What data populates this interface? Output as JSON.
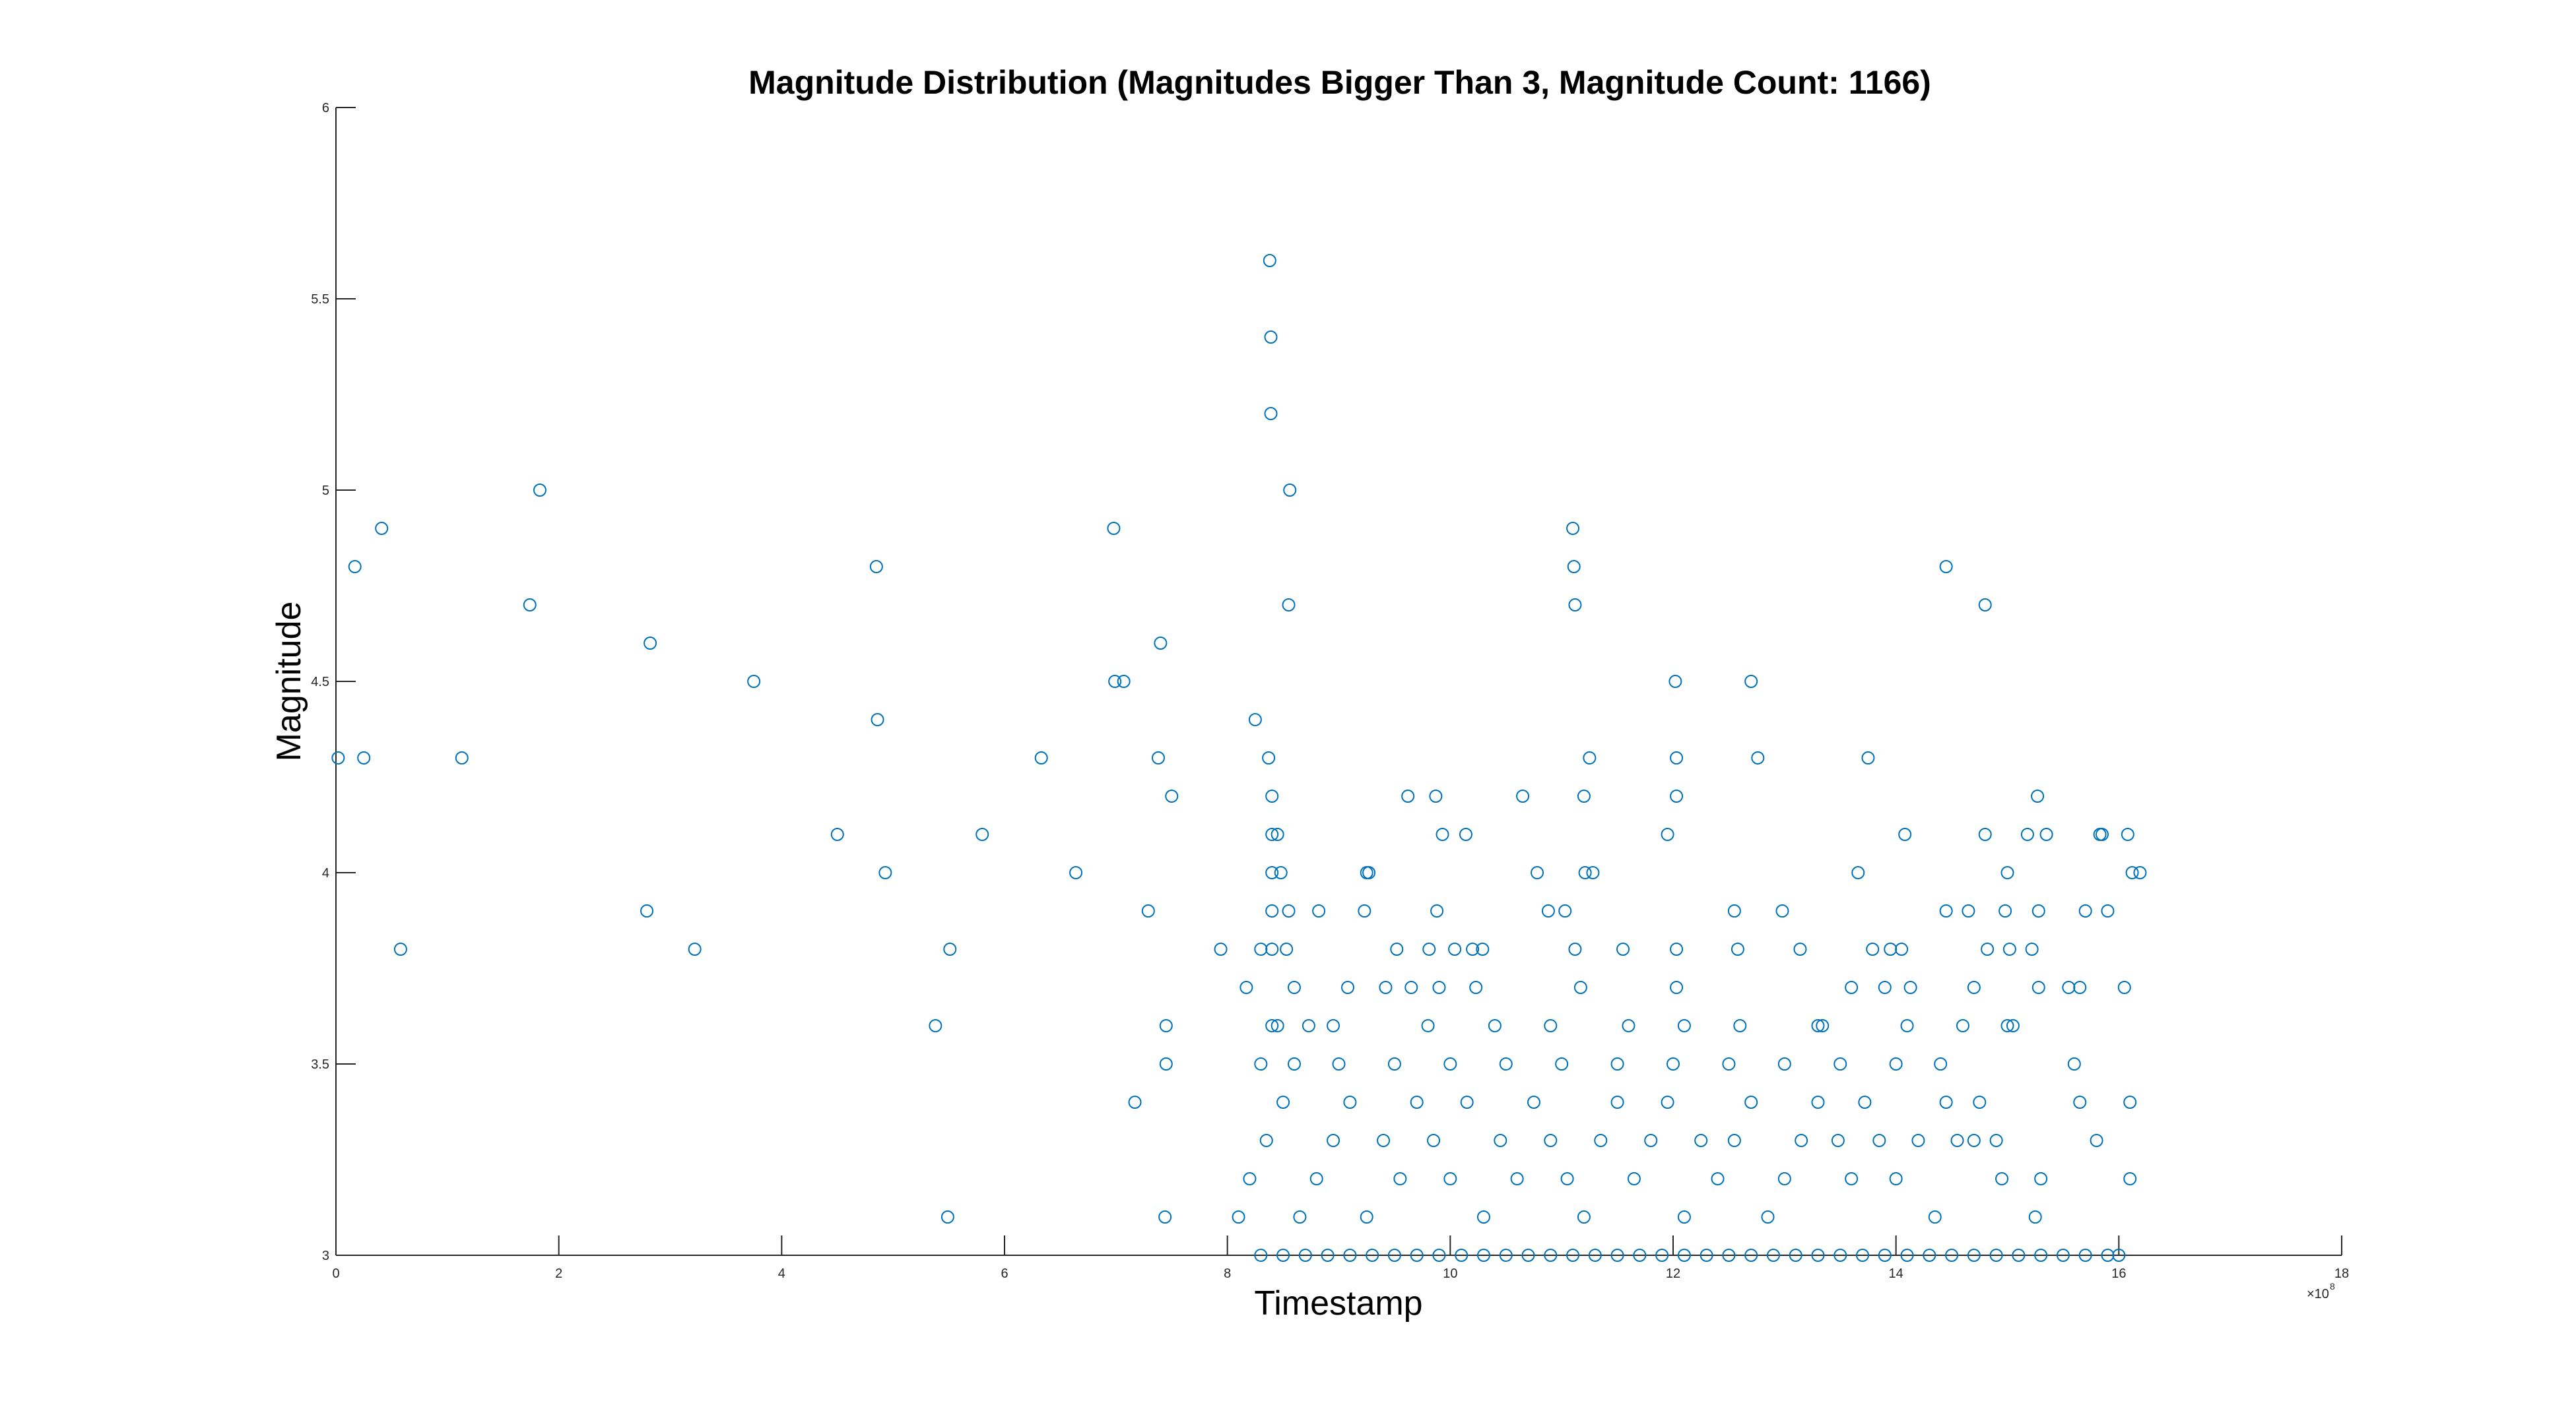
{
  "chart_data": {
    "type": "scatter",
    "title": "Magnitude Distribution (Magnitudes Bigger Than 3, Magnitude Count: 1166)",
    "xlabel": "Timestamp",
    "ylabel": "Magnitude",
    "x_exponent_label": "×10",
    "x_exponent_power": "8",
    "xlim": [
      0,
      18
    ],
    "ylim": [
      3,
      6
    ],
    "xticks": [
      "0",
      "2",
      "4",
      "6",
      "8",
      "10",
      "12",
      "14",
      "16",
      "18"
    ],
    "yticks": [
      "3",
      "3.5",
      "4",
      "4.5",
      "5",
      "5.5",
      "6"
    ],
    "marker_color": "#0072BD",
    "grid": false,
    "legend": "none",
    "x_unit_note": "x values in units of 1e8",
    "points": [
      [
        0.02,
        4.3
      ],
      [
        0.17,
        4.8
      ],
      [
        0.25,
        4.3
      ],
      [
        0.41,
        4.9
      ],
      [
        0.58,
        3.8
      ],
      [
        1.13,
        4.3
      ],
      [
        1.74,
        4.7
      ],
      [
        1.83,
        5.0
      ],
      [
        2.79,
        3.9
      ],
      [
        2.82,
        4.6
      ],
      [
        3.22,
        3.8
      ],
      [
        3.75,
        4.5
      ],
      [
        4.5,
        4.1
      ],
      [
        4.85,
        4.8
      ],
      [
        4.86,
        4.4
      ],
      [
        4.93,
        4.0
      ],
      [
        5.38,
        3.6
      ],
      [
        5.49,
        3.1
      ],
      [
        5.51,
        3.8
      ],
      [
        5.8,
        4.1
      ],
      [
        6.33,
        4.3
      ],
      [
        6.64,
        4.0
      ],
      [
        6.98,
        4.9
      ],
      [
        6.99,
        4.5
      ],
      [
        7.07,
        4.5
      ],
      [
        7.17,
        3.4
      ],
      [
        7.29,
        3.9
      ],
      [
        7.38,
        4.3
      ],
      [
        7.4,
        4.6
      ],
      [
        7.44,
        3.1
      ],
      [
        7.45,
        3.5
      ],
      [
        7.45,
        3.6
      ],
      [
        7.5,
        4.2
      ],
      [
        7.94,
        3.8
      ],
      [
        8.17,
        3.7
      ],
      [
        8.25,
        4.4
      ],
      [
        8.3,
        3.8
      ],
      [
        8.37,
        4.3
      ],
      [
        8.38,
        5.6
      ],
      [
        8.39,
        5.4
      ],
      [
        8.39,
        5.2
      ],
      [
        8.4,
        4.2
      ],
      [
        8.4,
        4.1
      ],
      [
        8.4,
        4.0
      ],
      [
        8.4,
        3.9
      ],
      [
        8.4,
        3.8
      ],
      [
        8.4,
        3.6
      ],
      [
        8.45,
        4.1
      ],
      [
        8.48,
        4.0
      ],
      [
        8.53,
        3.8
      ],
      [
        8.55,
        4.7
      ],
      [
        8.56,
        5.0
      ],
      [
        8.55,
        3.9
      ],
      [
        8.6,
        3.7
      ],
      [
        8.73,
        3.6
      ],
      [
        8.82,
        3.9
      ],
      [
        9.08,
        3.7
      ],
      [
        9.23,
        3.9
      ],
      [
        9.25,
        4.0
      ],
      [
        9.27,
        4.0
      ],
      [
        9.42,
        3.7
      ],
      [
        9.52,
        3.8
      ],
      [
        9.62,
        4.2
      ],
      [
        9.65,
        3.7
      ],
      [
        9.81,
        3.8
      ],
      [
        9.87,
        4.2
      ],
      [
        9.88,
        3.9
      ],
      [
        9.93,
        4.1
      ],
      [
        9.9,
        3.7
      ],
      [
        10.04,
        3.8
      ],
      [
        10.14,
        4.1
      ],
      [
        10.23,
        3.7
      ],
      [
        10.2,
        3.8
      ],
      [
        10.29,
        3.8
      ],
      [
        10.65,
        4.2
      ],
      [
        10.78,
        4.0
      ],
      [
        10.88,
        3.9
      ],
      [
        11.03,
        3.9
      ],
      [
        11.1,
        4.9
      ],
      [
        11.11,
        4.8
      ],
      [
        11.12,
        4.7
      ],
      [
        11.12,
        3.8
      ],
      [
        11.2,
        4.2
      ],
      [
        11.21,
        4.0
      ],
      [
        11.25,
        4.3
      ],
      [
        11.17,
        3.7
      ],
      [
        11.28,
        4.0
      ],
      [
        11.55,
        3.8
      ],
      [
        11.95,
        4.1
      ],
      [
        12.02,
        4.5
      ],
      [
        12.03,
        4.3
      ],
      [
        12.03,
        4.2
      ],
      [
        12.03,
        3.8
      ],
      [
        12.03,
        3.7
      ],
      [
        12.55,
        3.9
      ],
      [
        12.58,
        3.8
      ],
      [
        12.7,
        4.5
      ],
      [
        12.76,
        4.3
      ],
      [
        12.98,
        3.9
      ],
      [
        13.14,
        3.8
      ],
      [
        13.34,
        3.6
      ],
      [
        13.6,
        3.7
      ],
      [
        13.66,
        4.0
      ],
      [
        13.75,
        4.3
      ],
      [
        13.79,
        3.8
      ],
      [
        13.9,
        3.7
      ],
      [
        13.95,
        3.8
      ],
      [
        14.05,
        3.8
      ],
      [
        14.08,
        4.1
      ],
      [
        14.13,
        3.7
      ],
      [
        14.45,
        4.8
      ],
      [
        14.45,
        3.9
      ],
      [
        14.65,
        3.9
      ],
      [
        14.7,
        3.7
      ],
      [
        14.8,
        4.1
      ],
      [
        14.8,
        4.7
      ],
      [
        14.82,
        3.8
      ],
      [
        14.98,
        3.9
      ],
      [
        15.0,
        4.0
      ],
      [
        15.02,
        3.8
      ],
      [
        15.05,
        3.6
      ],
      [
        15.18,
        4.1
      ],
      [
        15.22,
        3.8
      ],
      [
        15.27,
        4.2
      ],
      [
        15.28,
        3.9
      ],
      [
        15.35,
        4.1
      ],
      [
        15.28,
        3.7
      ],
      [
        15.55,
        3.7
      ],
      [
        15.65,
        3.7
      ],
      [
        15.7,
        3.9
      ],
      [
        15.83,
        4.1
      ],
      [
        15.85,
        4.1
      ],
      [
        15.9,
        3.9
      ],
      [
        16.05,
        3.7
      ],
      [
        16.08,
        4.1
      ],
      [
        16.12,
        4.0
      ],
      [
        16.19,
        4.0
      ],
      [
        16.1,
        3.4
      ],
      [
        16.1,
        3.2
      ],
      [
        15.8,
        3.3
      ],
      [
        15.6,
        3.5
      ],
      [
        15.65,
        3.4
      ],
      [
        15.3,
        3.2
      ],
      [
        15.25,
        3.1
      ],
      [
        14.9,
        3.3
      ],
      [
        14.95,
        3.2
      ],
      [
        14.7,
        3.3
      ],
      [
        14.75,
        3.4
      ],
      [
        14.55,
        3.3
      ],
      [
        14.45,
        3.4
      ],
      [
        14.35,
        3.1
      ],
      [
        14.2,
        3.3
      ],
      [
        14.0,
        3.2
      ],
      [
        13.85,
        3.3
      ],
      [
        13.72,
        3.4
      ],
      [
        13.6,
        3.2
      ],
      [
        13.48,
        3.3
      ],
      [
        13.3,
        3.4
      ],
      [
        13.15,
        3.3
      ],
      [
        13.0,
        3.2
      ],
      [
        12.85,
        3.1
      ],
      [
        12.7,
        3.4
      ],
      [
        12.55,
        3.3
      ],
      [
        12.4,
        3.2
      ],
      [
        12.25,
        3.3
      ],
      [
        12.1,
        3.1
      ],
      [
        11.95,
        3.4
      ],
      [
        11.8,
        3.3
      ],
      [
        11.65,
        3.2
      ],
      [
        11.5,
        3.4
      ],
      [
        11.35,
        3.3
      ],
      [
        11.2,
        3.1
      ],
      [
        11.05,
        3.2
      ],
      [
        10.9,
        3.3
      ],
      [
        10.75,
        3.4
      ],
      [
        10.6,
        3.2
      ],
      [
        10.45,
        3.3
      ],
      [
        10.3,
        3.1
      ],
      [
        10.15,
        3.4
      ],
      [
        10.0,
        3.2
      ],
      [
        9.85,
        3.3
      ],
      [
        9.7,
        3.4
      ],
      [
        9.55,
        3.2
      ],
      [
        9.4,
        3.3
      ],
      [
        9.25,
        3.1
      ],
      [
        9.1,
        3.4
      ],
      [
        8.95,
        3.3
      ],
      [
        8.8,
        3.2
      ],
      [
        8.65,
        3.1
      ],
      [
        8.5,
        3.4
      ],
      [
        8.35,
        3.3
      ],
      [
        8.2,
        3.2
      ],
      [
        8.1,
        3.1
      ],
      [
        8.3,
        3.5
      ],
      [
        8.6,
        3.5
      ],
      [
        9.0,
        3.5
      ],
      [
        9.5,
        3.5
      ],
      [
        10.0,
        3.5
      ],
      [
        10.5,
        3.5
      ],
      [
        11.0,
        3.5
      ],
      [
        11.5,
        3.5
      ],
      [
        12.0,
        3.5
      ],
      [
        12.5,
        3.5
      ],
      [
        13.0,
        3.5
      ],
      [
        13.5,
        3.5
      ],
      [
        14.0,
        3.5
      ],
      [
        14.4,
        3.5
      ],
      [
        8.45,
        3.6
      ],
      [
        8.95,
        3.6
      ],
      [
        9.8,
        3.6
      ],
      [
        10.4,
        3.6
      ],
      [
        10.9,
        3.6
      ],
      [
        11.6,
        3.6
      ],
      [
        12.1,
        3.6
      ],
      [
        12.6,
        3.6
      ],
      [
        13.3,
        3.6
      ],
      [
        14.1,
        3.6
      ],
      [
        14.6,
        3.6
      ],
      [
        15.0,
        3.6
      ],
      [
        8.3,
        3.0
      ],
      [
        8.5,
        3.0
      ],
      [
        8.7,
        3.0
      ],
      [
        8.9,
        3.0
      ],
      [
        9.1,
        3.0
      ],
      [
        9.3,
        3.0
      ],
      [
        9.5,
        3.0
      ],
      [
        9.7,
        3.0
      ],
      [
        9.9,
        3.0
      ],
      [
        10.1,
        3.0
      ],
      [
        10.3,
        3.0
      ],
      [
        10.5,
        3.0
      ],
      [
        10.7,
        3.0
      ],
      [
        10.9,
        3.0
      ],
      [
        11.1,
        3.0
      ],
      [
        11.3,
        3.0
      ],
      [
        11.5,
        3.0
      ],
      [
        11.7,
        3.0
      ],
      [
        11.9,
        3.0
      ],
      [
        12.1,
        3.0
      ],
      [
        12.3,
        3.0
      ],
      [
        12.5,
        3.0
      ],
      [
        12.7,
        3.0
      ],
      [
        12.9,
        3.0
      ],
      [
        13.1,
        3.0
      ],
      [
        13.3,
        3.0
      ],
      [
        13.5,
        3.0
      ],
      [
        13.7,
        3.0
      ],
      [
        13.9,
        3.0
      ],
      [
        14.1,
        3.0
      ],
      [
        14.3,
        3.0
      ],
      [
        14.5,
        3.0
      ],
      [
        14.7,
        3.0
      ],
      [
        14.9,
        3.0
      ],
      [
        15.1,
        3.0
      ],
      [
        15.3,
        3.0
      ],
      [
        15.5,
        3.0
      ],
      [
        15.7,
        3.0
      ],
      [
        15.9,
        3.0
      ],
      [
        16.0,
        3.0
      ]
    ]
  }
}
